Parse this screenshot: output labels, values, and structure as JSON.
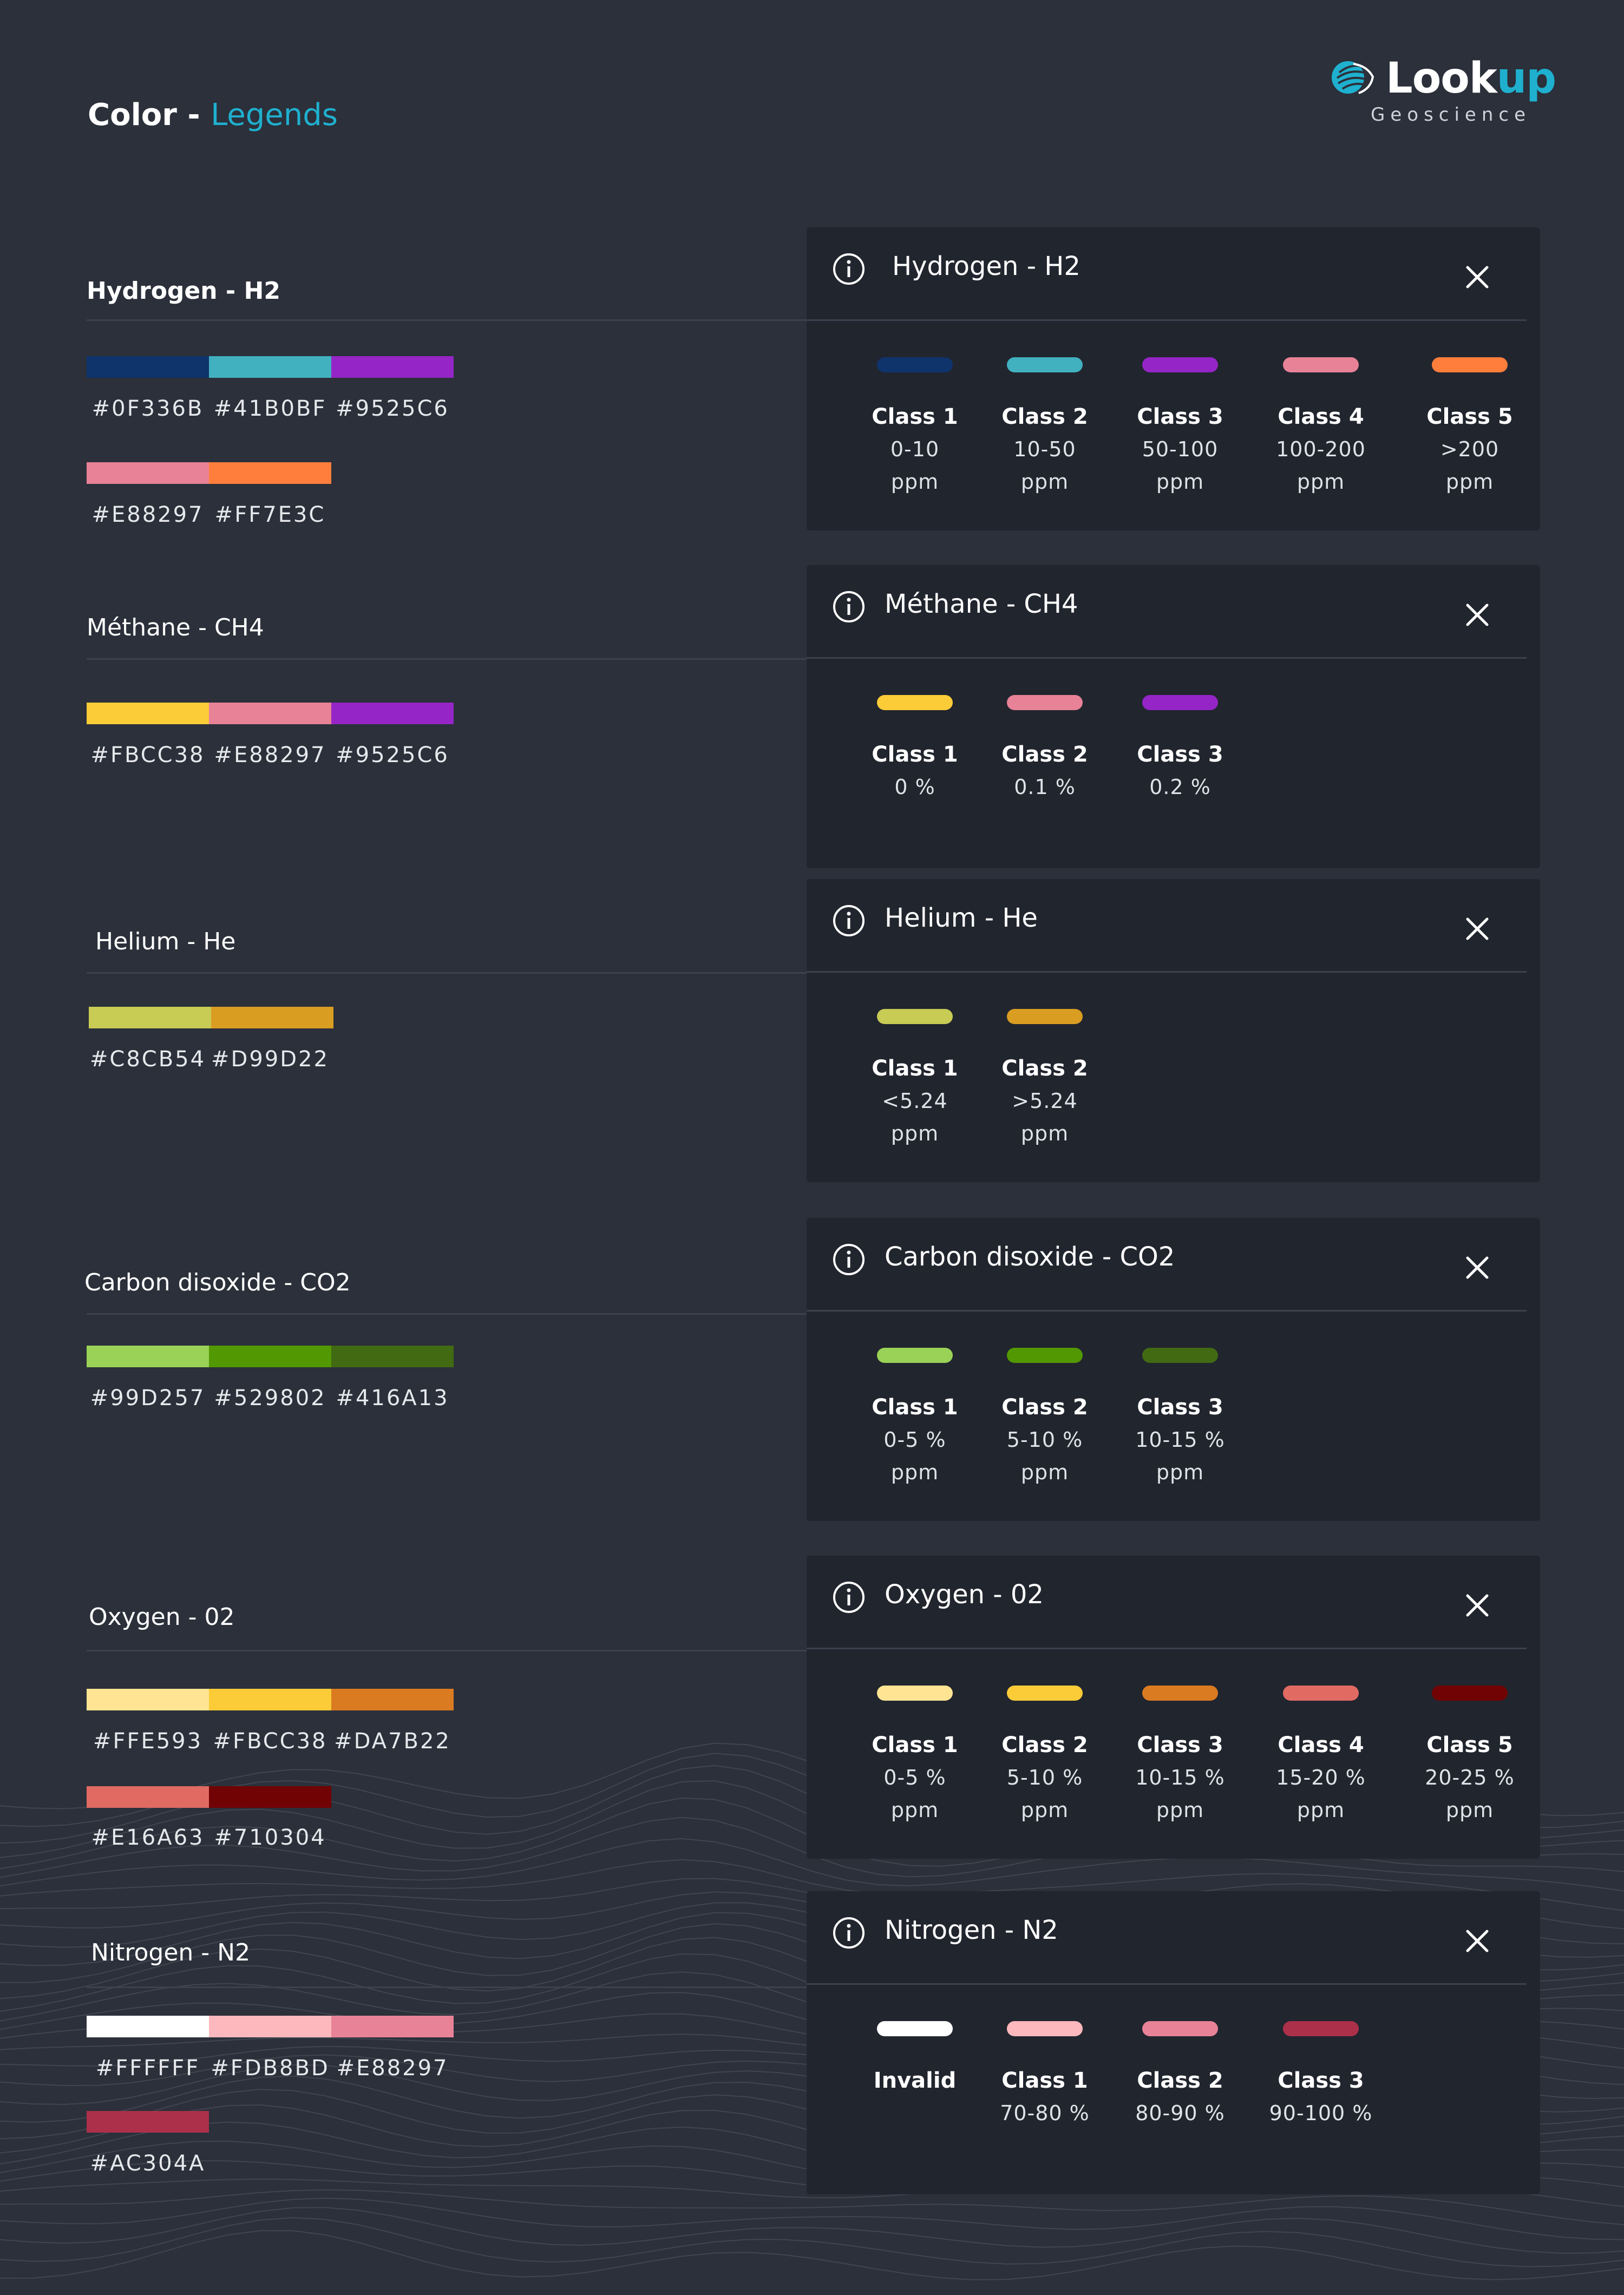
{
  "header": {
    "title_strong": "Color - ",
    "title_accent": "Legends",
    "brand": {
      "word_main": "Look",
      "word_accent": "up",
      "subtitle": "Geoscience"
    }
  },
  "sections": [
    {
      "title": "Hydrogen - H2",
      "card_title": "Hydrogen - H2",
      "rows": [
        [
          "#0F336B",
          "#41B0BF",
          "#9525C6"
        ],
        [
          "#E88297",
          "#FF7E3C"
        ]
      ],
      "classes": [
        {
          "name": "Class 1",
          "range": "0-10",
          "unit": "ppm",
          "color": "#0F336B"
        },
        {
          "name": "Class 2",
          "range": "10-50",
          "unit": "ppm",
          "color": "#41B0BF"
        },
        {
          "name": "Class 3",
          "range": "50-100",
          "unit": "ppm",
          "color": "#9525C6"
        },
        {
          "name": "Class 4",
          "range": "100-200",
          "unit": "ppm",
          "color": "#E88297"
        },
        {
          "name": "Class 5",
          "range": ">200",
          "unit": "ppm",
          "color": "#FF7E3C"
        }
      ]
    },
    {
      "title": "Méthane - CH4",
      "card_title": "Méthane - CH4",
      "rows": [
        [
          "#FBCC38",
          "#E88297",
          "#9525C6"
        ]
      ],
      "classes": [
        {
          "name": "Class 1",
          "range": "0 %",
          "color": "#FBCC38"
        },
        {
          "name": "Class 2",
          "range": "0.1 %",
          "color": "#E88297"
        },
        {
          "name": "Class 3",
          "range": "0.2 %",
          "color": "#9525C6"
        }
      ]
    },
    {
      "title": "Helium - He",
      "card_title": "Helium - He",
      "rows": [
        [
          "#C8CB54",
          "#D99D22"
        ]
      ],
      "classes": [
        {
          "name": "Class 1",
          "range": "<5.24",
          "unit": "ppm",
          "color": "#C8CB54"
        },
        {
          "name": "Class 2",
          "range": ">5.24",
          "unit": "ppm",
          "color": "#D99D22"
        }
      ]
    },
    {
      "title": "Carbon disoxide - CO2",
      "card_title": "Carbon disoxide - CO2",
      "rows": [
        [
          "#99D257",
          "#529802",
          "#416A13"
        ]
      ],
      "classes": [
        {
          "name": "Class 1",
          "range": "0-5 %",
          "unit": "ppm",
          "color": "#99D257"
        },
        {
          "name": "Class 2",
          "range": "5-10 %",
          "unit": "ppm",
          "color": "#529802"
        },
        {
          "name": "Class 3",
          "range": "10-15 %",
          "unit": "ppm",
          "color": "#416A13"
        }
      ]
    },
    {
      "title": "Oxygen - 02",
      "card_title": "Oxygen - 02",
      "rows": [
        [
          "#FFE593",
          "#FBCC38",
          "#DA7B22"
        ],
        [
          "#E16A63",
          "#710304"
        ]
      ],
      "classes": [
        {
          "name": "Class 1",
          "range": "0-5 %",
          "unit": "ppm",
          "color": "#FFE593"
        },
        {
          "name": "Class 2",
          "range": "5-10 %",
          "unit": "ppm",
          "color": "#FBCC38"
        },
        {
          "name": "Class 3",
          "range": "10-15 %",
          "unit": "ppm",
          "color": "#DA7B22"
        },
        {
          "name": "Class 4",
          "range": "15-20 %",
          "unit": "ppm",
          "color": "#E16A63"
        },
        {
          "name": "Class 5",
          "range": "20-25 %",
          "unit": "ppm",
          "color": "#710304"
        }
      ]
    },
    {
      "title": "Nitrogen - N2",
      "card_title": "Nitrogen - N2",
      "rows": [
        [
          "#FFFFFF",
          "#FDB8BD",
          "#E88297"
        ],
        [
          "#AC304A"
        ]
      ],
      "classes": [
        {
          "name": "Invalid",
          "color": "#FFFFFF"
        },
        {
          "name": "Class 1",
          "range": "70-80 %",
          "color": "#FDB8BD"
        },
        {
          "name": "Class 2",
          "range": "80-90 %",
          "color": "#E88297"
        },
        {
          "name": "Class 3",
          "range": "90-100 %",
          "color": "#AC304A"
        }
      ]
    }
  ]
}
